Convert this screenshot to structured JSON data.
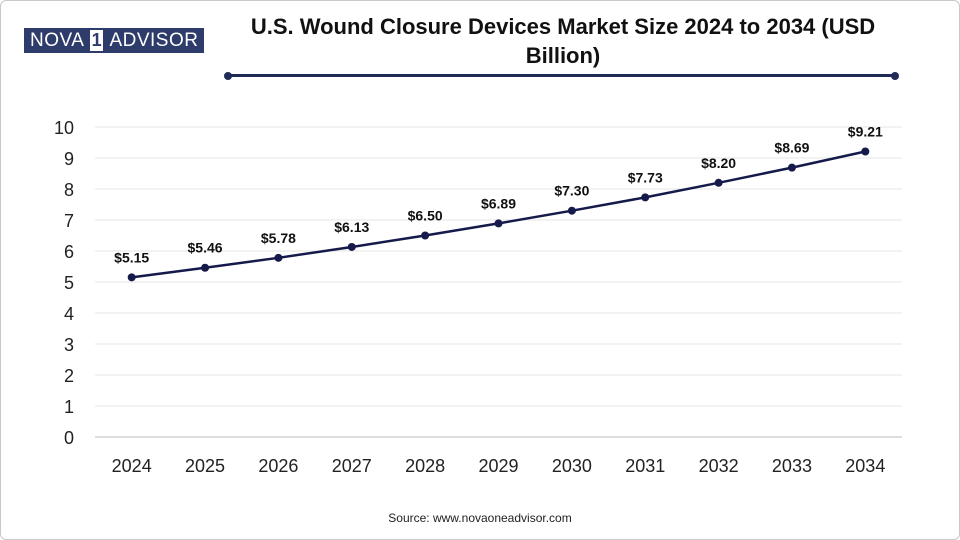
{
  "brand": {
    "name_left": "NOVA",
    "mark": "1",
    "name_right": "ADVISOR",
    "color": "#2e3c6b"
  },
  "colors": {
    "line": "#151a4b",
    "rule": "#1f2a56",
    "grid": "#e6e6e6"
  },
  "source": "Source: www.novaoneadvisor.com",
  "chart_data": {
    "type": "line",
    "title": "U.S. Wound Closure Devices Market Size 2024 to 2034 (USD Billion)",
    "xlabel": "",
    "ylabel": "",
    "categories": [
      "2024",
      "2025",
      "2026",
      "2027",
      "2028",
      "2029",
      "2030",
      "2031",
      "2032",
      "2033",
      "2034"
    ],
    "series": [
      {
        "values": [
          5.15,
          5.46,
          5.78,
          6.13,
          6.5,
          6.89,
          7.3,
          7.73,
          8.2,
          8.69,
          9.21
        ],
        "labels": [
          "$5.15",
          "$5.46",
          "$5.78",
          "$6.13",
          "$6.50",
          "$6.89",
          "$7.30",
          "$7.73",
          "$8.20",
          "$8.69",
          "$9.21"
        ]
      }
    ],
    "ylim": [
      0,
      10
    ],
    "yticks": [
      "0",
      "1",
      "2",
      "3",
      "4",
      "5",
      "6",
      "7",
      "8",
      "9",
      "10"
    ],
    "grid": true,
    "legend": "none"
  }
}
